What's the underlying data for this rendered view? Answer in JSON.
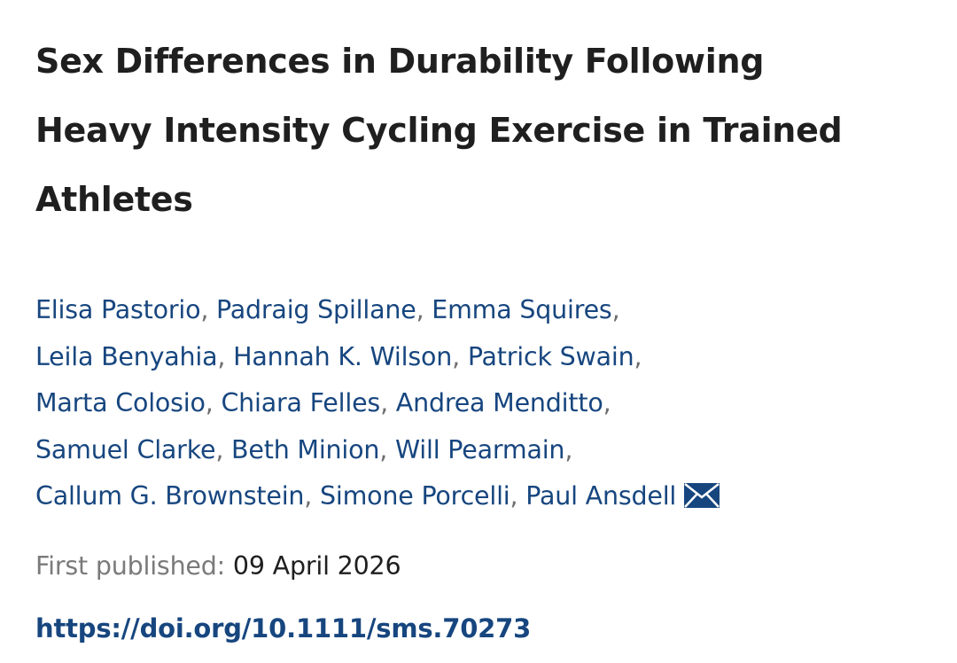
{
  "article": {
    "title_lines": [
      "Sex Differences in Durability Following",
      "Heavy Intensity Cycling Exercise in Trained",
      "Athletes"
    ],
    "author_separator": ",",
    "authors": [
      [
        "Elisa Pastorio",
        "Padraig Spillane",
        "Emma Squires"
      ],
      [
        "Leila Benyahia",
        "Hannah K. Wilson",
        "Patrick Swain"
      ],
      [
        "Marta Colosio",
        "Chiara Felles",
        "Andrea Menditto"
      ],
      [
        "Samuel Clarke",
        "Beth Minion",
        "Will Pearmain"
      ],
      [
        "Callum G. Brownstein",
        "Simone Porcelli",
        "Paul Ansdell"
      ]
    ],
    "corresponding_icon": "envelope-icon",
    "published_label": "First published:",
    "published_date": "09 April 2026",
    "doi_url": "https://doi.org/10.1111/sms.70273"
  },
  "colors": {
    "link": "#17467f",
    "text": "#1f1f1f",
    "muted": "#7a7a7a"
  }
}
